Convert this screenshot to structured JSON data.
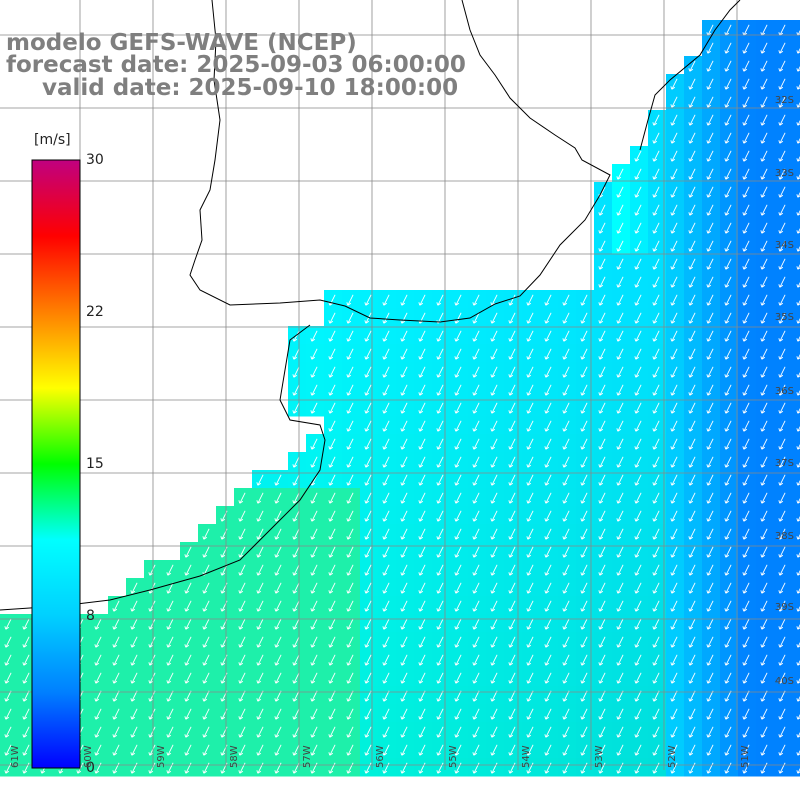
{
  "title": {
    "line1": "modelo GEFS-WAVE (NCEP)",
    "line2": "forecast date: 2025-09-03 06:00:00",
    "line3": "valid date: 2025-09-10 18:00:00"
  },
  "colorbar": {
    "unit": "[m/s]",
    "ticks": [
      "30",
      "22",
      "15",
      "8",
      "0"
    ],
    "colors": [
      "#0000ff",
      "#0080ff",
      "#00d0ff",
      "#00ffff",
      "#00ff00",
      "#ffff00",
      "#ff8000",
      "#ff0000",
      "#c00080"
    ]
  },
  "lat_labels": [
    "32S",
    "33S",
    "34S",
    "35S",
    "36S",
    "37S",
    "38S",
    "39S",
    "40S"
  ],
  "lon_labels": [
    "61W",
    "60W",
    "59W",
    "58W",
    "57W",
    "56W",
    "55W",
    "54W",
    "53W",
    "52W",
    "51W"
  ],
  "chart_data": {
    "type": "heatmap",
    "variable": "wind speed",
    "unit": "m/s",
    "scale": [
      0,
      30
    ],
    "dominant_wind_direction": "from northeast (arrows pointing southwest)",
    "speed_range_observed": [
      5,
      11
    ],
    "legend_position": "left"
  }
}
